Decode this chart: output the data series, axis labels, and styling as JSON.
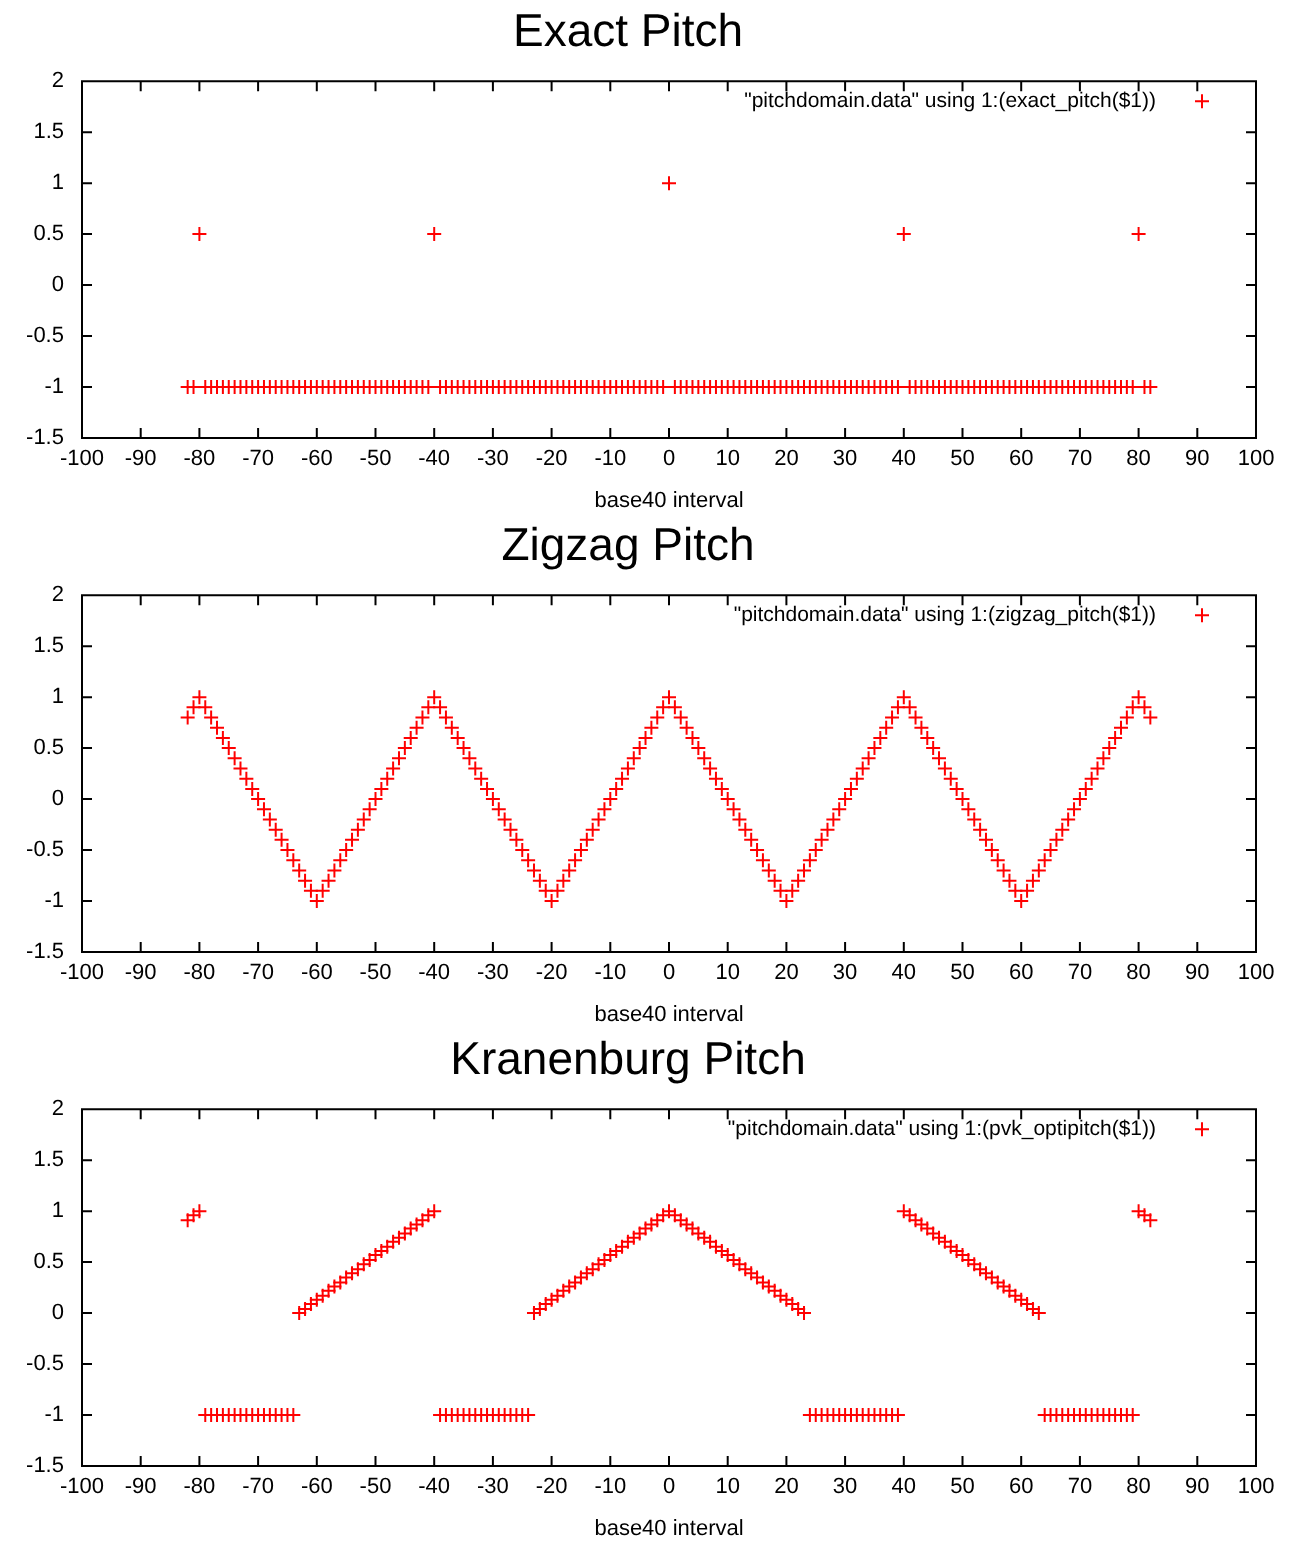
{
  "chart_data": [
    {
      "type": "scatter",
      "title": "Exact Pitch",
      "xlabel": "base40 interval",
      "xlim": [
        -100,
        100
      ],
      "xticks": [
        -100,
        -90,
        -80,
        -70,
        -60,
        -50,
        -40,
        -30,
        -20,
        -10,
        0,
        10,
        20,
        30,
        40,
        50,
        60,
        70,
        80,
        90,
        100
      ],
      "ylim": [
        -1.5,
        2
      ],
      "yticks": [
        -1.5,
        -1,
        -0.5,
        0,
        0.5,
        1,
        1.5,
        2
      ],
      "legend": "top right",
      "marker": "cross",
      "x": [
        -82,
        -81,
        -80,
        -79,
        -78,
        -77,
        -76,
        -75,
        -74,
        -73,
        -72,
        -71,
        -70,
        -69,
        -68,
        -67,
        -66,
        -65,
        -64,
        -63,
        -62,
        -61,
        -60,
        -59,
        -58,
        -57,
        -56,
        -55,
        -54,
        -53,
        -52,
        -51,
        -50,
        -49,
        -48,
        -47,
        -46,
        -45,
        -44,
        -43,
        -42,
        -41,
        -40,
        -39,
        -38,
        -37,
        -36,
        -35,
        -34,
        -33,
        -32,
        -31,
        -30,
        -29,
        -28,
        -27,
        -26,
        -25,
        -24,
        -23,
        -22,
        -21,
        -20,
        -19,
        -18,
        -17,
        -16,
        -15,
        -14,
        -13,
        -12,
        -11,
        -10,
        -9,
        -8,
        -7,
        -6,
        -5,
        -4,
        -3,
        -2,
        -1,
        0,
        1,
        2,
        3,
        4,
        5,
        6,
        7,
        8,
        9,
        10,
        11,
        12,
        13,
        14,
        15,
        16,
        17,
        18,
        19,
        20,
        21,
        22,
        23,
        24,
        25,
        26,
        27,
        28,
        29,
        30,
        31,
        32,
        33,
        34,
        35,
        36,
        37,
        38,
        39,
        40,
        41,
        42,
        43,
        44,
        45,
        46,
        47,
        48,
        49,
        50,
        51,
        52,
        53,
        54,
        55,
        56,
        57,
        58,
        59,
        60,
        61,
        62,
        63,
        64,
        65,
        66,
        67,
        68,
        69,
        70,
        71,
        72,
        73,
        74,
        75,
        76,
        77,
        78,
        79,
        80,
        81,
        82
      ],
      "series": [
        {
          "name": "\"pitchdomain.data\" using 1:(exact_pitch($1))",
          "color": "#ff0000",
          "values": [
            -1,
            -1,
            0.5,
            -1,
            -1,
            -1,
            -1,
            -1,
            -1,
            -1,
            -1,
            -1,
            -1,
            -1,
            -1,
            -1,
            -1,
            -1,
            -1,
            -1,
            -1,
            -1,
            -1,
            -1,
            -1,
            -1,
            -1,
            -1,
            -1,
            -1,
            -1,
            -1,
            -1,
            -1,
            -1,
            -1,
            -1,
            -1,
            -1,
            -1,
            -1,
            -1,
            0.5,
            -1,
            -1,
            -1,
            -1,
            -1,
            -1,
            -1,
            -1,
            -1,
            -1,
            -1,
            -1,
            -1,
            -1,
            -1,
            -1,
            -1,
            -1,
            -1,
            -1,
            -1,
            -1,
            -1,
            -1,
            -1,
            -1,
            -1,
            -1,
            -1,
            -1,
            -1,
            -1,
            -1,
            -1,
            -1,
            -1,
            -1,
            -1,
            -1,
            1,
            -1,
            -1,
            -1,
            -1,
            -1,
            -1,
            -1,
            -1,
            -1,
            -1,
            -1,
            -1,
            -1,
            -1,
            -1,
            -1,
            -1,
            -1,
            -1,
            -1,
            -1,
            -1,
            -1,
            -1,
            -1,
            -1,
            -1,
            -1,
            -1,
            -1,
            -1,
            -1,
            -1,
            -1,
            -1,
            -1,
            -1,
            -1,
            -1,
            0.5,
            -1,
            -1,
            -1,
            -1,
            -1,
            -1,
            -1,
            -1,
            -1,
            -1,
            -1,
            -1,
            -1,
            -1,
            -1,
            -1,
            -1,
            -1,
            -1,
            -1,
            -1,
            -1,
            -1,
            -1,
            -1,
            -1,
            -1,
            -1,
            -1,
            -1,
            -1,
            -1,
            -1,
            -1,
            -1,
            -1,
            -1,
            -1,
            -1,
            0.5,
            -1,
            -1
          ]
        }
      ]
    },
    {
      "type": "scatter",
      "title": "Zigzag Pitch",
      "xlabel": "base40 interval",
      "xlim": [
        -100,
        100
      ],
      "xticks": [
        -100,
        -90,
        -80,
        -70,
        -60,
        -50,
        -40,
        -30,
        -20,
        -10,
        0,
        10,
        20,
        30,
        40,
        50,
        60,
        70,
        80,
        90,
        100
      ],
      "ylim": [
        -1.5,
        2
      ],
      "yticks": [
        -1.5,
        -1,
        -0.5,
        0,
        0.5,
        1,
        1.5,
        2
      ],
      "legend": "top right",
      "marker": "cross",
      "x": [
        -82,
        -81,
        -80,
        -79,
        -78,
        -77,
        -76,
        -75,
        -74,
        -73,
        -72,
        -71,
        -70,
        -69,
        -68,
        -67,
        -66,
        -65,
        -64,
        -63,
        -62,
        -61,
        -60,
        -59,
        -58,
        -57,
        -56,
        -55,
        -54,
        -53,
        -52,
        -51,
        -50,
        -49,
        -48,
        -47,
        -46,
        -45,
        -44,
        -43,
        -42,
        -41,
        -40,
        -39,
        -38,
        -37,
        -36,
        -35,
        -34,
        -33,
        -32,
        -31,
        -30,
        -29,
        -28,
        -27,
        -26,
        -25,
        -24,
        -23,
        -22,
        -21,
        -20,
        -19,
        -18,
        -17,
        -16,
        -15,
        -14,
        -13,
        -12,
        -11,
        -10,
        -9,
        -8,
        -7,
        -6,
        -5,
        -4,
        -3,
        -2,
        -1,
        0,
        1,
        2,
        3,
        4,
        5,
        6,
        7,
        8,
        9,
        10,
        11,
        12,
        13,
        14,
        15,
        16,
        17,
        18,
        19,
        20,
        21,
        22,
        23,
        24,
        25,
        26,
        27,
        28,
        29,
        30,
        31,
        32,
        33,
        34,
        35,
        36,
        37,
        38,
        39,
        40,
        41,
        42,
        43,
        44,
        45,
        46,
        47,
        48,
        49,
        50,
        51,
        52,
        53,
        54,
        55,
        56,
        57,
        58,
        59,
        60,
        61,
        62,
        63,
        64,
        65,
        66,
        67,
        68,
        69,
        70,
        71,
        72,
        73,
        74,
        75,
        76,
        77,
        78,
        79,
        80,
        81,
        82
      ],
      "series": [
        {
          "name": "\"pitchdomain.data\" using 1:(zigzag_pitch($1))",
          "color": "#ff0000",
          "values": [
            0.8,
            0.9,
            1,
            0.9,
            0.8,
            0.7,
            0.6,
            0.5,
            0.4,
            0.3,
            0.2,
            0.1,
            0,
            -0.1,
            -0.2,
            -0.3,
            -0.4,
            -0.5,
            -0.6,
            -0.7,
            -0.8,
            -0.9,
            -1,
            -0.9,
            -0.8,
            -0.7,
            -0.6,
            -0.5,
            -0.4,
            -0.3,
            -0.2,
            -0.1,
            0,
            0.1,
            0.2,
            0.3,
            0.4,
            0.5,
            0.6,
            0.7,
            0.8,
            0.9,
            1,
            0.9,
            0.8,
            0.7,
            0.6,
            0.5,
            0.4,
            0.3,
            0.2,
            0.1,
            0,
            -0.1,
            -0.2,
            -0.3,
            -0.4,
            -0.5,
            -0.6,
            -0.7,
            -0.8,
            -0.9,
            -1,
            -0.9,
            -0.8,
            -0.7,
            -0.6,
            -0.5,
            -0.4,
            -0.3,
            -0.2,
            -0.1,
            0,
            0.1,
            0.2,
            0.3,
            0.4,
            0.5,
            0.6,
            0.7,
            0.8,
            0.9,
            1,
            0.9,
            0.8,
            0.7,
            0.6,
            0.5,
            0.4,
            0.3,
            0.2,
            0.1,
            0,
            -0.1,
            -0.2,
            -0.3,
            -0.4,
            -0.5,
            -0.6,
            -0.7,
            -0.8,
            -0.9,
            -1,
            -0.9,
            -0.8,
            -0.7,
            -0.6,
            -0.5,
            -0.4,
            -0.3,
            -0.2,
            -0.1,
            0,
            0.1,
            0.2,
            0.3,
            0.4,
            0.5,
            0.6,
            0.7,
            0.8,
            0.9,
            1,
            0.9,
            0.8,
            0.7,
            0.6,
            0.5,
            0.4,
            0.3,
            0.2,
            0.1,
            0,
            -0.1,
            -0.2,
            -0.3,
            -0.4,
            -0.5,
            -0.6,
            -0.7,
            -0.8,
            -0.9,
            -1,
            -0.9,
            -0.8,
            -0.7,
            -0.6,
            -0.5,
            -0.4,
            -0.3,
            -0.2,
            -0.1,
            0,
            0.1,
            0.2,
            0.3,
            0.4,
            0.5,
            0.6,
            0.7,
            0.8,
            0.9,
            1,
            0.9,
            0.8
          ]
        }
      ]
    },
    {
      "type": "scatter",
      "title": "Kranenburg Pitch",
      "xlabel": "base40 interval",
      "xlim": [
        -100,
        100
      ],
      "xticks": [
        -100,
        -90,
        -80,
        -70,
        -60,
        -50,
        -40,
        -30,
        -20,
        -10,
        0,
        10,
        20,
        30,
        40,
        50,
        60,
        70,
        80,
        90,
        100
      ],
      "ylim": [
        -1.5,
        2
      ],
      "yticks": [
        -1.5,
        -1,
        -0.5,
        0,
        0.5,
        1,
        1.5,
        2
      ],
      "legend": "top right",
      "marker": "cross",
      "x": [
        -82,
        -81,
        -80,
        -79,
        -78,
        -77,
        -76,
        -75,
        -74,
        -73,
        -72,
        -71,
        -70,
        -69,
        -68,
        -67,
        -66,
        -65,
        -64,
        -63,
        -62,
        -61,
        -60,
        -59,
        -58,
        -57,
        -56,
        -55,
        -54,
        -53,
        -52,
        -51,
        -50,
        -49,
        -48,
        -47,
        -46,
        -45,
        -44,
        -43,
        -42,
        -41,
        -40,
        -39,
        -38,
        -37,
        -36,
        -35,
        -34,
        -33,
        -32,
        -31,
        -30,
        -29,
        -28,
        -27,
        -26,
        -25,
        -24,
        -23,
        -22,
        -21,
        -20,
        -19,
        -18,
        -17,
        -16,
        -15,
        -14,
        -13,
        -12,
        -11,
        -10,
        -9,
        -8,
        -7,
        -6,
        -5,
        -4,
        -3,
        -2,
        -1,
        0,
        1,
        2,
        3,
        4,
        5,
        6,
        7,
        8,
        9,
        10,
        11,
        12,
        13,
        14,
        15,
        16,
        17,
        18,
        19,
        20,
        21,
        22,
        23,
        24,
        25,
        26,
        27,
        28,
        29,
        30,
        31,
        32,
        33,
        34,
        35,
        36,
        37,
        38,
        39,
        40,
        41,
        42,
        43,
        44,
        45,
        46,
        47,
        48,
        49,
        50,
        51,
        52,
        53,
        54,
        55,
        56,
        57,
        58,
        59,
        60,
        61,
        62,
        63,
        64,
        65,
        66,
        67,
        68,
        69,
        70,
        71,
        72,
        73,
        74,
        75,
        76,
        77,
        78,
        79,
        80,
        81,
        82
      ],
      "series": [
        {
          "name": "\"pitchdomain.data\" using 1:(pvk_optipitch($1))",
          "color": "#ff0000",
          "values": [
            0.91,
            0.96,
            1,
            -1,
            -1,
            -1,
            -1,
            -1,
            -1,
            -1,
            -1,
            -1,
            -1,
            -1,
            -1,
            -1,
            -1,
            -1,
            -1,
            0,
            0.04,
            0.09,
            0.13,
            0.17,
            0.22,
            0.26,
            0.3,
            0.35,
            0.39,
            0.43,
            0.48,
            0.52,
            0.57,
            0.61,
            0.65,
            0.7,
            0.74,
            0.78,
            0.83,
            0.87,
            0.91,
            0.96,
            1,
            -1,
            -1,
            -1,
            -1,
            -1,
            -1,
            -1,
            -1,
            -1,
            -1,
            -1,
            -1,
            -1,
            -1,
            -1,
            -1,
            0,
            0.04,
            0.09,
            0.13,
            0.17,
            0.22,
            0.26,
            0.3,
            0.35,
            0.39,
            0.43,
            0.48,
            0.52,
            0.57,
            0.61,
            0.65,
            0.7,
            0.74,
            0.78,
            0.83,
            0.87,
            0.91,
            0.96,
            1,
            0.96,
            0.91,
            0.87,
            0.83,
            0.78,
            0.74,
            0.7,
            0.65,
            0.61,
            0.57,
            0.52,
            0.48,
            0.43,
            0.39,
            0.35,
            0.3,
            0.26,
            0.22,
            0.17,
            0.13,
            0.09,
            0.04,
            0,
            -1,
            -1,
            -1,
            -1,
            -1,
            -1,
            -1,
            -1,
            -1,
            -1,
            -1,
            -1,
            -1,
            -1,
            -1,
            -1,
            1,
            0.96,
            0.91,
            0.87,
            0.83,
            0.78,
            0.74,
            0.7,
            0.65,
            0.61,
            0.57,
            0.52,
            0.48,
            0.43,
            0.39,
            0.35,
            0.3,
            0.26,
            0.22,
            0.17,
            0.13,
            0.09,
            0.04,
            0,
            -1,
            -1,
            -1,
            -1,
            -1,
            -1,
            -1,
            -1,
            -1,
            -1,
            -1,
            -1,
            -1,
            -1,
            -1,
            -1,
            1,
            0.96,
            0.91
          ]
        }
      ]
    }
  ]
}
